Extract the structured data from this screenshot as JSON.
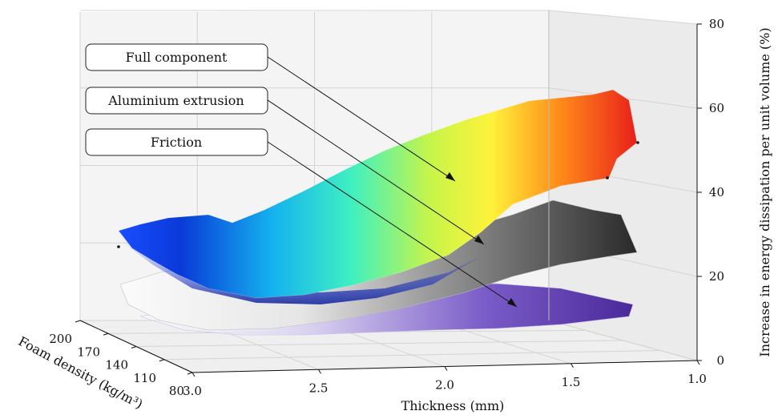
{
  "chart_data": {
    "type": "surface3d",
    "x_axis": {
      "label": "Thickness (mm)",
      "ticks": [
        "3.0",
        "2.5",
        "2.0",
        "1.5",
        "1.0"
      ],
      "range": [
        3.0,
        1.0
      ]
    },
    "y_axis": {
      "label": "Foam density (kg/m³)",
      "ticks": [
        "80",
        "110",
        "140",
        "170",
        "200"
      ],
      "range": [
        80,
        200
      ]
    },
    "z_axis": {
      "label": "Increase in energy dissipation per unit volume (%)",
      "ticks": [
        "0",
        "20",
        "40",
        "60",
        "80"
      ],
      "range": [
        0,
        80
      ]
    },
    "grid": true,
    "series": [
      {
        "name": "Full component",
        "colormap": "jet",
        "thickness": [
          3.0,
          2.5,
          2.0,
          1.5,
          1.0
        ],
        "values": [
          28,
          38,
          48,
          58,
          66
        ]
      },
      {
        "name": "Aluminium extrusion",
        "colormap": "greys",
        "thickness": [
          3.0,
          2.5,
          2.0,
          1.5,
          1.0
        ],
        "values": [
          12,
          18,
          24,
          30,
          34
        ]
      },
      {
        "name": "Friction",
        "colormap": "purples",
        "thickness": [
          3.0,
          2.5,
          2.0,
          1.5,
          1.0
        ],
        "values": [
          4,
          6,
          8,
          10,
          12
        ]
      }
    ]
  }
}
